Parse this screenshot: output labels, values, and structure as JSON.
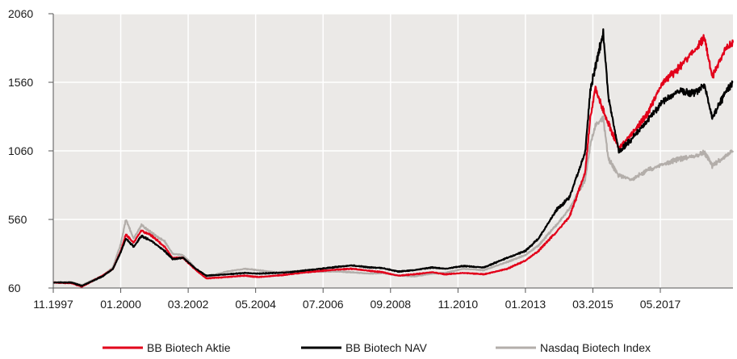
{
  "chart_data": {
    "type": "line",
    "title": "",
    "xlabel": "",
    "ylabel": "",
    "ylim": [
      60,
      2060
    ],
    "y_ticks": [
      "2060",
      "1560",
      "1060",
      "560",
      "60"
    ],
    "x_ticks": [
      "11.1997",
      "01.2000",
      "03.2002",
      "05.2004",
      "07.2006",
      "09.2008",
      "11.2010",
      "01.2013",
      "03.2015",
      "05.2017"
    ],
    "grid": "vertical and horizontal",
    "legend_position": "bottom",
    "colors": {
      "plot_bg": "#ebe9e7",
      "grid": "#ffffff",
      "axis": "#555555"
    },
    "series": [
      {
        "name": "BB Biotech Aktie",
        "color": "#e2001a",
        "points": [
          [
            "1997-11",
            100
          ],
          [
            "1998-06",
            95
          ],
          [
            "1998-10",
            70
          ],
          [
            "1999-06",
            150
          ],
          [
            "1999-10",
            200
          ],
          [
            "2000-01",
            330
          ],
          [
            "2000-03",
            450
          ],
          [
            "2000-06",
            390
          ],
          [
            "2000-09",
            480
          ],
          [
            "2001-01",
            440
          ],
          [
            "2001-06",
            360
          ],
          [
            "2001-09",
            280
          ],
          [
            "2002-01",
            280
          ],
          [
            "2002-06",
            190
          ],
          [
            "2002-10",
            130
          ],
          [
            "2003-06",
            140
          ],
          [
            "2004-01",
            150
          ],
          [
            "2004-06",
            140
          ],
          [
            "2005-01",
            150
          ],
          [
            "2005-06",
            160
          ],
          [
            "2006-01",
            175
          ],
          [
            "2006-06",
            185
          ],
          [
            "2007-01",
            195
          ],
          [
            "2007-06",
            200
          ],
          [
            "2008-01",
            185
          ],
          [
            "2008-06",
            175
          ],
          [
            "2008-12",
            150
          ],
          [
            "2009-06",
            160
          ],
          [
            "2010-01",
            175
          ],
          [
            "2010-06",
            160
          ],
          [
            "2011-01",
            170
          ],
          [
            "2011-09",
            160
          ],
          [
            "2012-06",
            200
          ],
          [
            "2013-01",
            260
          ],
          [
            "2013-06",
            330
          ],
          [
            "2014-01",
            470
          ],
          [
            "2014-06",
            580
          ],
          [
            "2014-12",
            900
          ],
          [
            "2015-02",
            1300
          ],
          [
            "2015-04",
            1520
          ],
          [
            "2015-08",
            1300
          ],
          [
            "2016-01",
            1080
          ],
          [
            "2016-06",
            1180
          ],
          [
            "2016-12",
            1330
          ],
          [
            "2017-06",
            1560
          ],
          [
            "2017-12",
            1660
          ],
          [
            "2018-06",
            1790
          ],
          [
            "2018-10",
            1880
          ],
          [
            "2019-01",
            1600
          ],
          [
            "2019-06",
            1800
          ],
          [
            "2019-09",
            1850
          ]
        ]
      },
      {
        "name": "BB Biotech NAV",
        "color": "#000000",
        "points": [
          [
            "1997-11",
            100
          ],
          [
            "1998-06",
            100
          ],
          [
            "1998-10",
            75
          ],
          [
            "1999-06",
            145
          ],
          [
            "1999-10",
            200
          ],
          [
            "2000-01",
            320
          ],
          [
            "2000-03",
            420
          ],
          [
            "2000-06",
            360
          ],
          [
            "2000-09",
            440
          ],
          [
            "2001-01",
            400
          ],
          [
            "2001-06",
            330
          ],
          [
            "2001-09",
            270
          ],
          [
            "2002-01",
            280
          ],
          [
            "2002-06",
            200
          ],
          [
            "2002-10",
            150
          ],
          [
            "2003-06",
            160
          ],
          [
            "2004-01",
            170
          ],
          [
            "2004-06",
            165
          ],
          [
            "2005-01",
            170
          ],
          [
            "2005-06",
            175
          ],
          [
            "2006-01",
            190
          ],
          [
            "2006-06",
            200
          ],
          [
            "2007-01",
            215
          ],
          [
            "2007-06",
            225
          ],
          [
            "2008-01",
            210
          ],
          [
            "2008-06",
            205
          ],
          [
            "2008-12",
            180
          ],
          [
            "2009-06",
            190
          ],
          [
            "2010-01",
            210
          ],
          [
            "2010-06",
            200
          ],
          [
            "2011-01",
            220
          ],
          [
            "2011-09",
            210
          ],
          [
            "2012-06",
            280
          ],
          [
            "2013-01",
            330
          ],
          [
            "2013-06",
            420
          ],
          [
            "2014-01",
            630
          ],
          [
            "2014-06",
            720
          ],
          [
            "2014-12",
            1050
          ],
          [
            "2015-02",
            1500
          ],
          [
            "2015-04",
            1680
          ],
          [
            "2015-07",
            1920
          ],
          [
            "2015-09",
            1450
          ],
          [
            "2016-01",
            1050
          ],
          [
            "2016-06",
            1150
          ],
          [
            "2016-12",
            1280
          ],
          [
            "2017-06",
            1420
          ],
          [
            "2017-12",
            1500
          ],
          [
            "2018-06",
            1480
          ],
          [
            "2018-10",
            1540
          ],
          [
            "2019-01",
            1300
          ],
          [
            "2019-06",
            1480
          ],
          [
            "2019-09",
            1560
          ]
        ]
      },
      {
        "name": "Nasdaq Biotech Index",
        "color": "#b3aeaa",
        "points": [
          [
            "1997-11",
            100
          ],
          [
            "1998-06",
            105
          ],
          [
            "1998-10",
            80
          ],
          [
            "1999-06",
            150
          ],
          [
            "1999-10",
            210
          ],
          [
            "2000-01",
            380
          ],
          [
            "2000-03",
            560
          ],
          [
            "2000-06",
            420
          ],
          [
            "2000-09",
            520
          ],
          [
            "2001-01",
            460
          ],
          [
            "2001-06",
            400
          ],
          [
            "2001-09",
            310
          ],
          [
            "2002-01",
            300
          ],
          [
            "2002-06",
            200
          ],
          [
            "2002-10",
            140
          ],
          [
            "2003-06",
            180
          ],
          [
            "2004-01",
            200
          ],
          [
            "2004-06",
            190
          ],
          [
            "2005-01",
            175
          ],
          [
            "2005-06",
            180
          ],
          [
            "2006-01",
            190
          ],
          [
            "2006-06",
            180
          ],
          [
            "2007-01",
            180
          ],
          [
            "2007-06",
            175
          ],
          [
            "2008-01",
            165
          ],
          [
            "2008-06",
            170
          ],
          [
            "2008-12",
            150
          ],
          [
            "2009-06",
            145
          ],
          [
            "2010-01",
            165
          ],
          [
            "2010-06",
            170
          ],
          [
            "2011-01",
            200
          ],
          [
            "2011-09",
            190
          ],
          [
            "2012-06",
            250
          ],
          [
            "2013-01",
            300
          ],
          [
            "2013-06",
            370
          ],
          [
            "2014-01",
            520
          ],
          [
            "2014-06",
            640
          ],
          [
            "2014-12",
            850
          ],
          [
            "2015-02",
            1100
          ],
          [
            "2015-04",
            1250
          ],
          [
            "2015-07",
            1300
          ],
          [
            "2015-09",
            1000
          ],
          [
            "2016-01",
            880
          ],
          [
            "2016-06",
            850
          ],
          [
            "2016-12",
            920
          ],
          [
            "2017-06",
            960
          ],
          [
            "2017-12",
            1000
          ],
          [
            "2018-06",
            1020
          ],
          [
            "2018-10",
            1050
          ],
          [
            "2019-01",
            950
          ],
          [
            "2019-06",
            1020
          ],
          [
            "2019-09",
            1060
          ]
        ]
      }
    ]
  }
}
